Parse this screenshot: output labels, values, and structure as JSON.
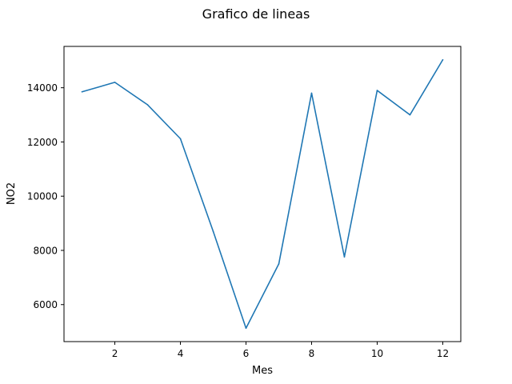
{
  "chart_data": {
    "type": "line",
    "title": "Grafico de lineas",
    "xlabel": "Mes",
    "ylabel": "NO2",
    "x": [
      1,
      2,
      3,
      4,
      5,
      6,
      7,
      8,
      9,
      10,
      11,
      12
    ],
    "series": [
      {
        "values": [
          13850,
          14200,
          13370,
          12120,
          8700,
          5130,
          7500,
          13800,
          7760,
          13900,
          13000,
          15030
        ],
        "color": "#1f77b4"
      }
    ],
    "xlim": [
      0.45,
      12.55
    ],
    "ylim": [
      4635,
      15525
    ],
    "xticks": [
      2,
      4,
      6,
      8,
      10,
      12
    ],
    "yticks": [
      6000,
      8000,
      10000,
      12000,
      14000
    ],
    "grid": false,
    "legend": false
  }
}
